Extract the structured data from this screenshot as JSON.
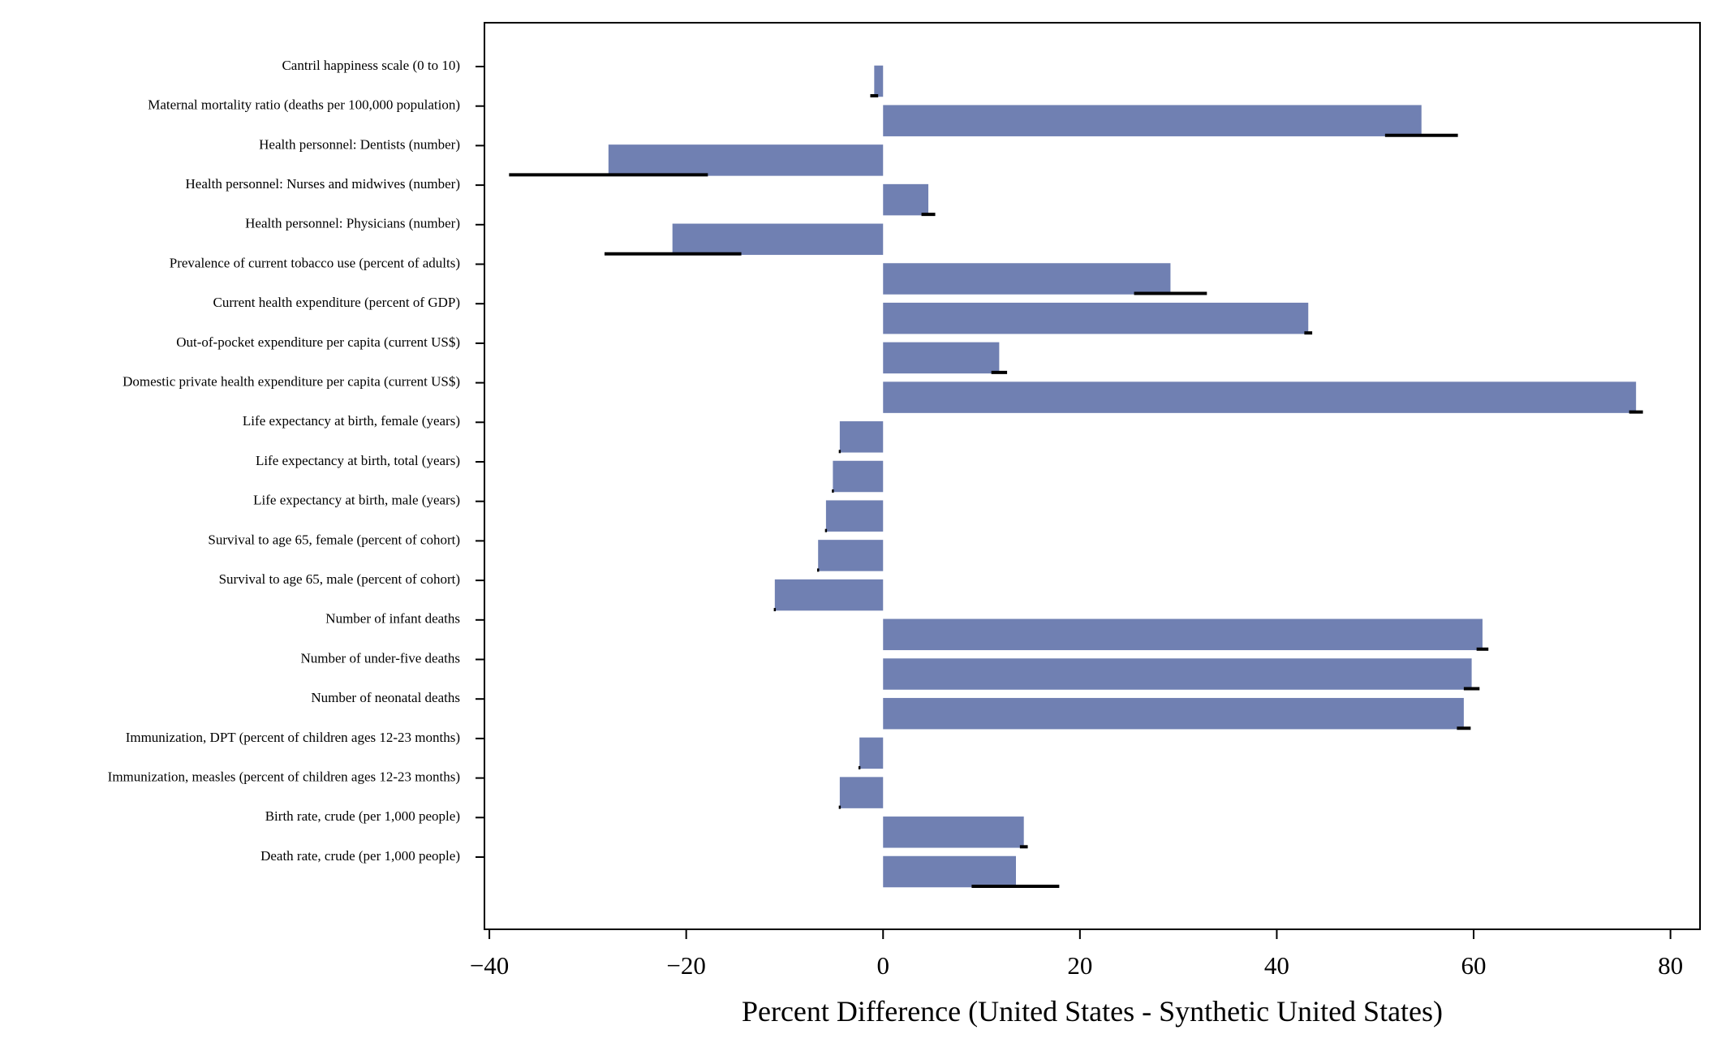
{
  "chart_data": {
    "type": "bar",
    "orientation": "horizontal",
    "title": "",
    "xlabel": "Percent Difference (United States - Synthetic United States)",
    "ylabel": "",
    "xlim": [
      -40.5,
      83
    ],
    "xticks": [
      -40,
      -20,
      0,
      20,
      40,
      60,
      80
    ],
    "xtick_labels": [
      "−40",
      "−20",
      "0",
      "20",
      "40",
      "60",
      "80"
    ],
    "grid": false,
    "bar_color": "#7080b2",
    "error_color": "#000000",
    "categories": [
      "Cantril happiness scale (0 to 10)",
      "Maternal mortality ratio (deaths per 100,000 population)",
      "Health personnel: Dentists (number)",
      "Health personnel: Nurses and midwives (number)",
      "Health personnel: Physicians (number)",
      "Prevalence of current tobacco use (percent of adults)",
      "Current health expenditure (percent of GDP)",
      "Out-of-pocket expenditure per capita (current US$)",
      "Domestic private health expenditure per capita (current US$)",
      "Life expectancy at birth, female (years)",
      "Life expectancy at birth, total (years)",
      "Life expectancy at birth, male (years)",
      "Survival to age 65, female (percent of cohort)",
      "Survival to age 65, male (percent of cohort)",
      "Number of infant deaths",
      "Number of under-five deaths",
      "Number of neonatal deaths",
      "Immunization, DPT (percent of children ages 12-23 months)",
      "Immunization, measles (percent of children ages 12-23 months)",
      "Birth rate, crude (per 1,000 people)",
      "Death rate, crude (per 1,000 people)"
    ],
    "values": [
      -0.9,
      54.7,
      -27.9,
      4.6,
      -21.4,
      29.2,
      43.2,
      11.8,
      76.5,
      -4.4,
      -5.1,
      -5.8,
      -6.6,
      -11.0,
      60.9,
      59.8,
      59.0,
      -2.4,
      -4.4,
      14.3,
      13.5
    ],
    "error_low": [
      -1.3,
      51.0,
      -38.0,
      3.9,
      -28.3,
      25.5,
      42.8,
      11.0,
      75.8,
      -4.5,
      -5.2,
      -5.9,
      -6.7,
      -11.1,
      60.3,
      59.0,
      58.3,
      -2.5,
      -4.5,
      13.9,
      9.0
    ],
    "error_high": [
      -0.5,
      58.4,
      -17.8,
      5.3,
      -14.4,
      32.9,
      43.6,
      12.6,
      77.2,
      -4.3,
      -5.0,
      -5.7,
      -6.5,
      -10.9,
      61.5,
      60.6,
      59.7,
      -2.3,
      -4.3,
      14.7,
      17.9
    ]
  }
}
